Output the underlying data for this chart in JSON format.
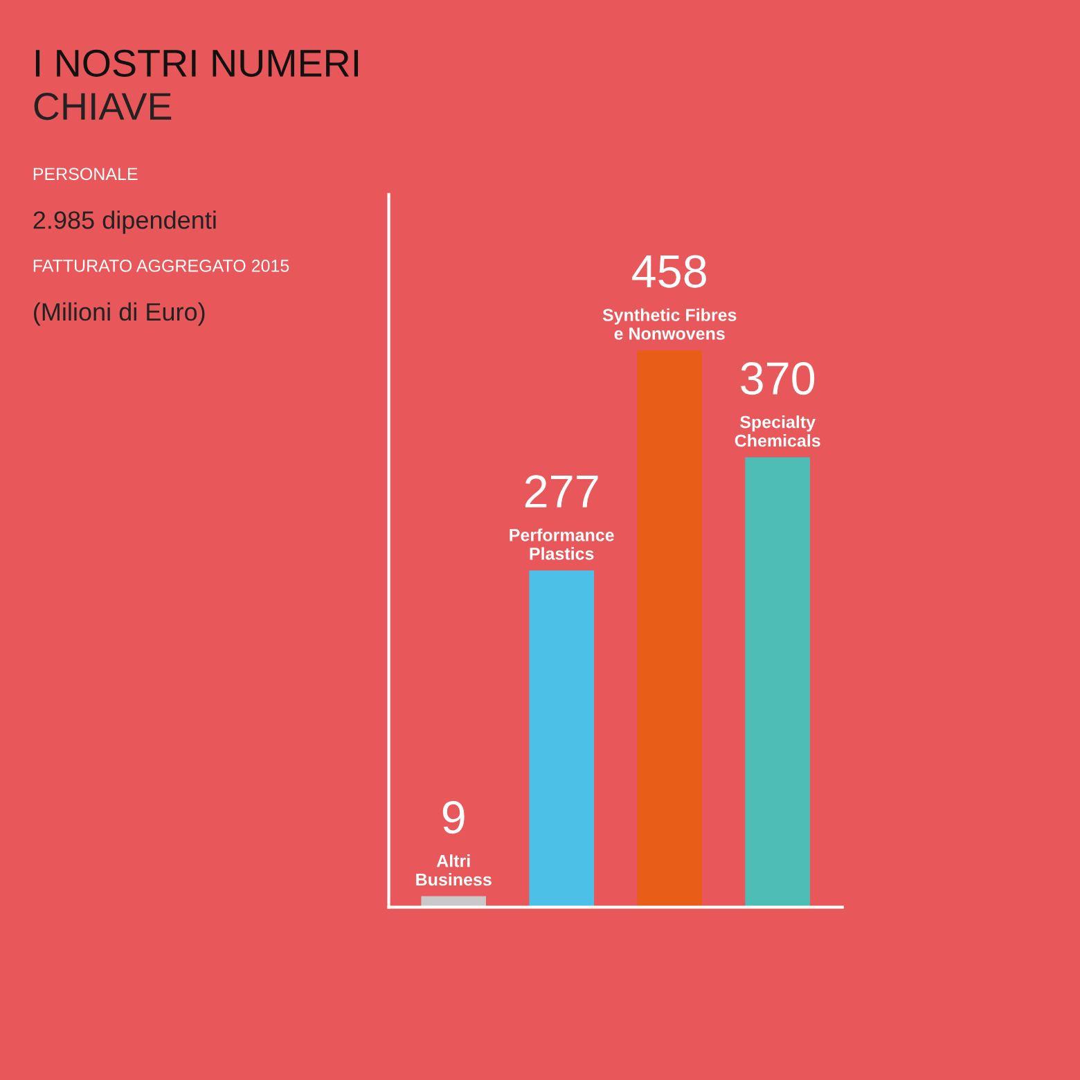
{
  "chart_data": {
    "type": "bar",
    "title": "I NOSTRI NUMERI",
    "subtitle": "CHIAVE",
    "annotations": [
      "PERSONALE",
      "2.985 dipendenti",
      "FATTURATO AGGREGATO 2015",
      "(Milioni di Euro)"
    ],
    "categories": [
      "Altri Business",
      "Performance Plastics",
      "Synthetic Fibres e Nonwovens",
      "Specialty Chemicals"
    ],
    "values": [
      9,
      277,
      458,
      370
    ],
    "colors": [
      "#c9c9c9",
      "#4cc0e6",
      "#e85d18",
      "#4ebdb6"
    ],
    "data_labels": true
  }
}
